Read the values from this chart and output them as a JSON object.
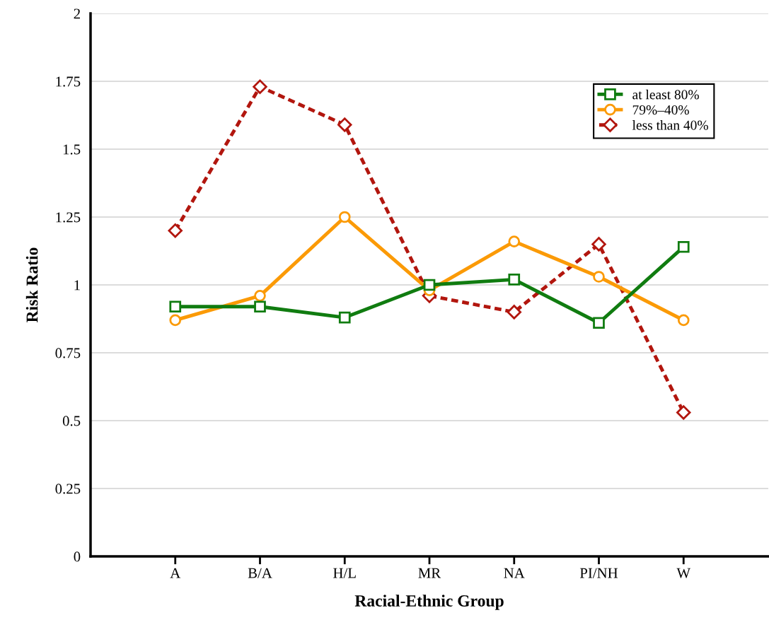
{
  "chart_data": {
    "type": "line",
    "xlabel": "Racial-Ethnic Group",
    "ylabel": "Risk Ratio",
    "categories": [
      "A",
      "B/A",
      "H/L",
      "MR",
      "NA",
      "PI/NH",
      "W"
    ],
    "series": [
      {
        "name": "at least 80%",
        "color": "#107c10",
        "marker": "square",
        "line_style": "solid",
        "values": [
          0.92,
          0.92,
          0.88,
          1.0,
          1.02,
          0.86,
          1.14
        ]
      },
      {
        "name": "79%–40%",
        "color": "#fb9a06",
        "marker": "circle",
        "line_style": "solid",
        "values": [
          0.87,
          0.96,
          1.25,
          0.98,
          1.16,
          1.03,
          0.87
        ]
      },
      {
        "name": "less than 40%",
        "color": "#b2160e",
        "marker": "diamond",
        "line_style": "dashed",
        "values": [
          1.2,
          1.73,
          1.59,
          0.96,
          0.9,
          1.15,
          0.53
        ]
      }
    ],
    "ylim": [
      0,
      2
    ],
    "yticks": [
      0,
      0.25,
      0.5,
      0.75,
      1,
      1.25,
      1.5,
      1.75,
      2
    ],
    "grid": "y",
    "legend": "top right"
  }
}
